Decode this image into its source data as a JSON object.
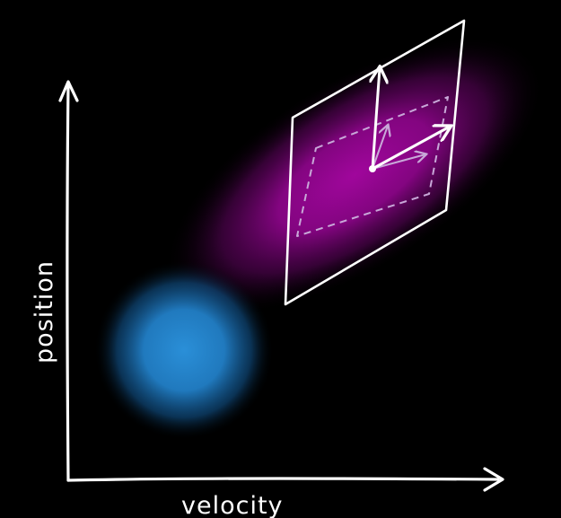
{
  "diagram": {
    "x_axis_label": "velocity",
    "y_axis_label": "position",
    "colors": {
      "background": "#000000",
      "blue_blob": "#2a8fd8",
      "magenta_glow": "#a0069c",
      "ink": "#ffffff",
      "faded_ink": "#c8a8d8"
    }
  }
}
